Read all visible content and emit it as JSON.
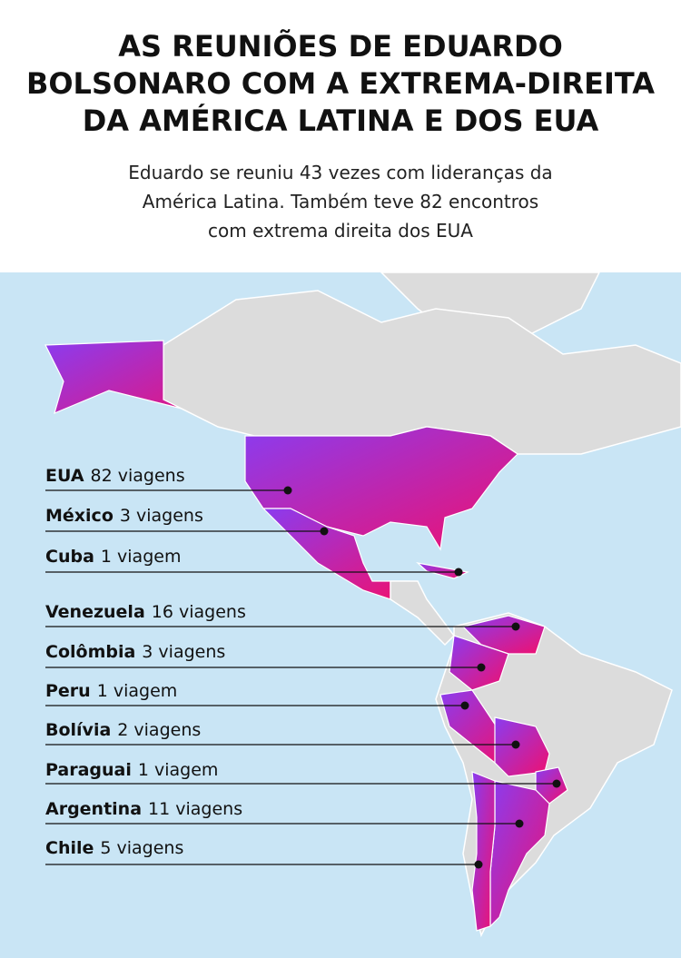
{
  "header": {
    "title_lines": [
      "AS REUNIÕES DE EDUARDO",
      "BOLSONARO COM A EXTREMA-DIREITA",
      "DA AMÉRICA LATINA E DOS EUA"
    ],
    "subtitle_lines": [
      "Eduardo se reuniu 43 vezes com lideranças da",
      "América Latina. Também teve 82 encontros",
      "com extrema direita dos EUA"
    ]
  },
  "labels": [
    {
      "country": "EUA",
      "trips": "82 viagens"
    },
    {
      "country": "México",
      "trips": "3 viagens"
    },
    {
      "country": "Cuba",
      "trips": "1 viagem"
    },
    {
      "country": "Venezuela",
      "trips": "16  viagens"
    },
    {
      "country": "Colômbia",
      "trips": "3 viagens"
    },
    {
      "country": "Peru",
      "trips": "1 viagem"
    },
    {
      "country": "Bolívia",
      "trips": "2 viagens"
    },
    {
      "country": "Paraguai",
      "trips": "1 viagem"
    },
    {
      "country": "Argentina",
      "trips": "11 viagens"
    },
    {
      "country": "Chile",
      "trips": "5 viagens"
    }
  ]
}
